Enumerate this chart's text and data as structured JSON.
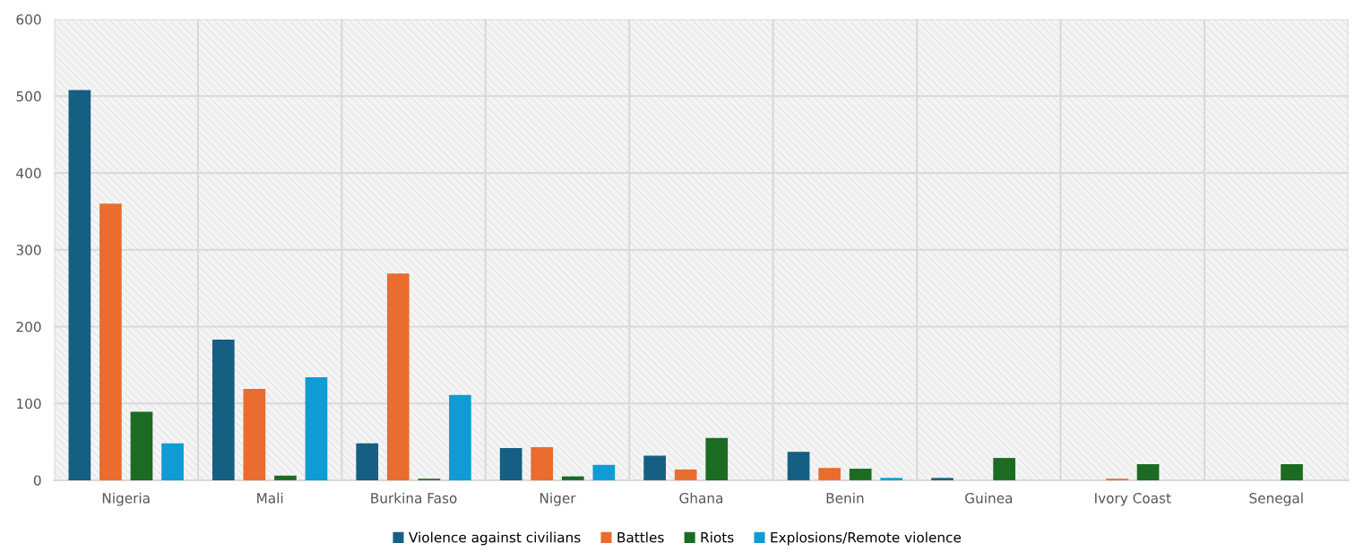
{
  "chart_data": {
    "type": "bar",
    "categories": [
      "Nigeria",
      "Mali",
      "Burkina Faso",
      "Niger",
      "Ghana",
      "Benin",
      "Guinea",
      "Ivory Coast",
      "Senegal"
    ],
    "series": [
      {
        "name": "Violence against civilians",
        "color": "#155f83",
        "values": [
          508,
          183,
          48,
          42,
          32,
          37,
          3,
          0,
          0
        ]
      },
      {
        "name": "Battles",
        "color": "#e86d2f",
        "values": [
          360,
          119,
          269,
          43,
          14,
          16,
          0,
          2,
          0
        ]
      },
      {
        "name": "Riots",
        "color": "#1b6b23",
        "values": [
          89,
          6,
          2,
          5,
          55,
          15,
          29,
          21,
          21
        ]
      },
      {
        "name": "Explosions/Remote violence",
        "color": "#0f9bd4",
        "values": [
          48,
          134,
          111,
          20,
          0,
          3,
          0,
          0,
          0
        ]
      }
    ],
    "ylim": [
      0,
      600
    ],
    "yticks": [
      0,
      100,
      200,
      300,
      400,
      500,
      600
    ],
    "grid": true,
    "legend": "bottom"
  }
}
